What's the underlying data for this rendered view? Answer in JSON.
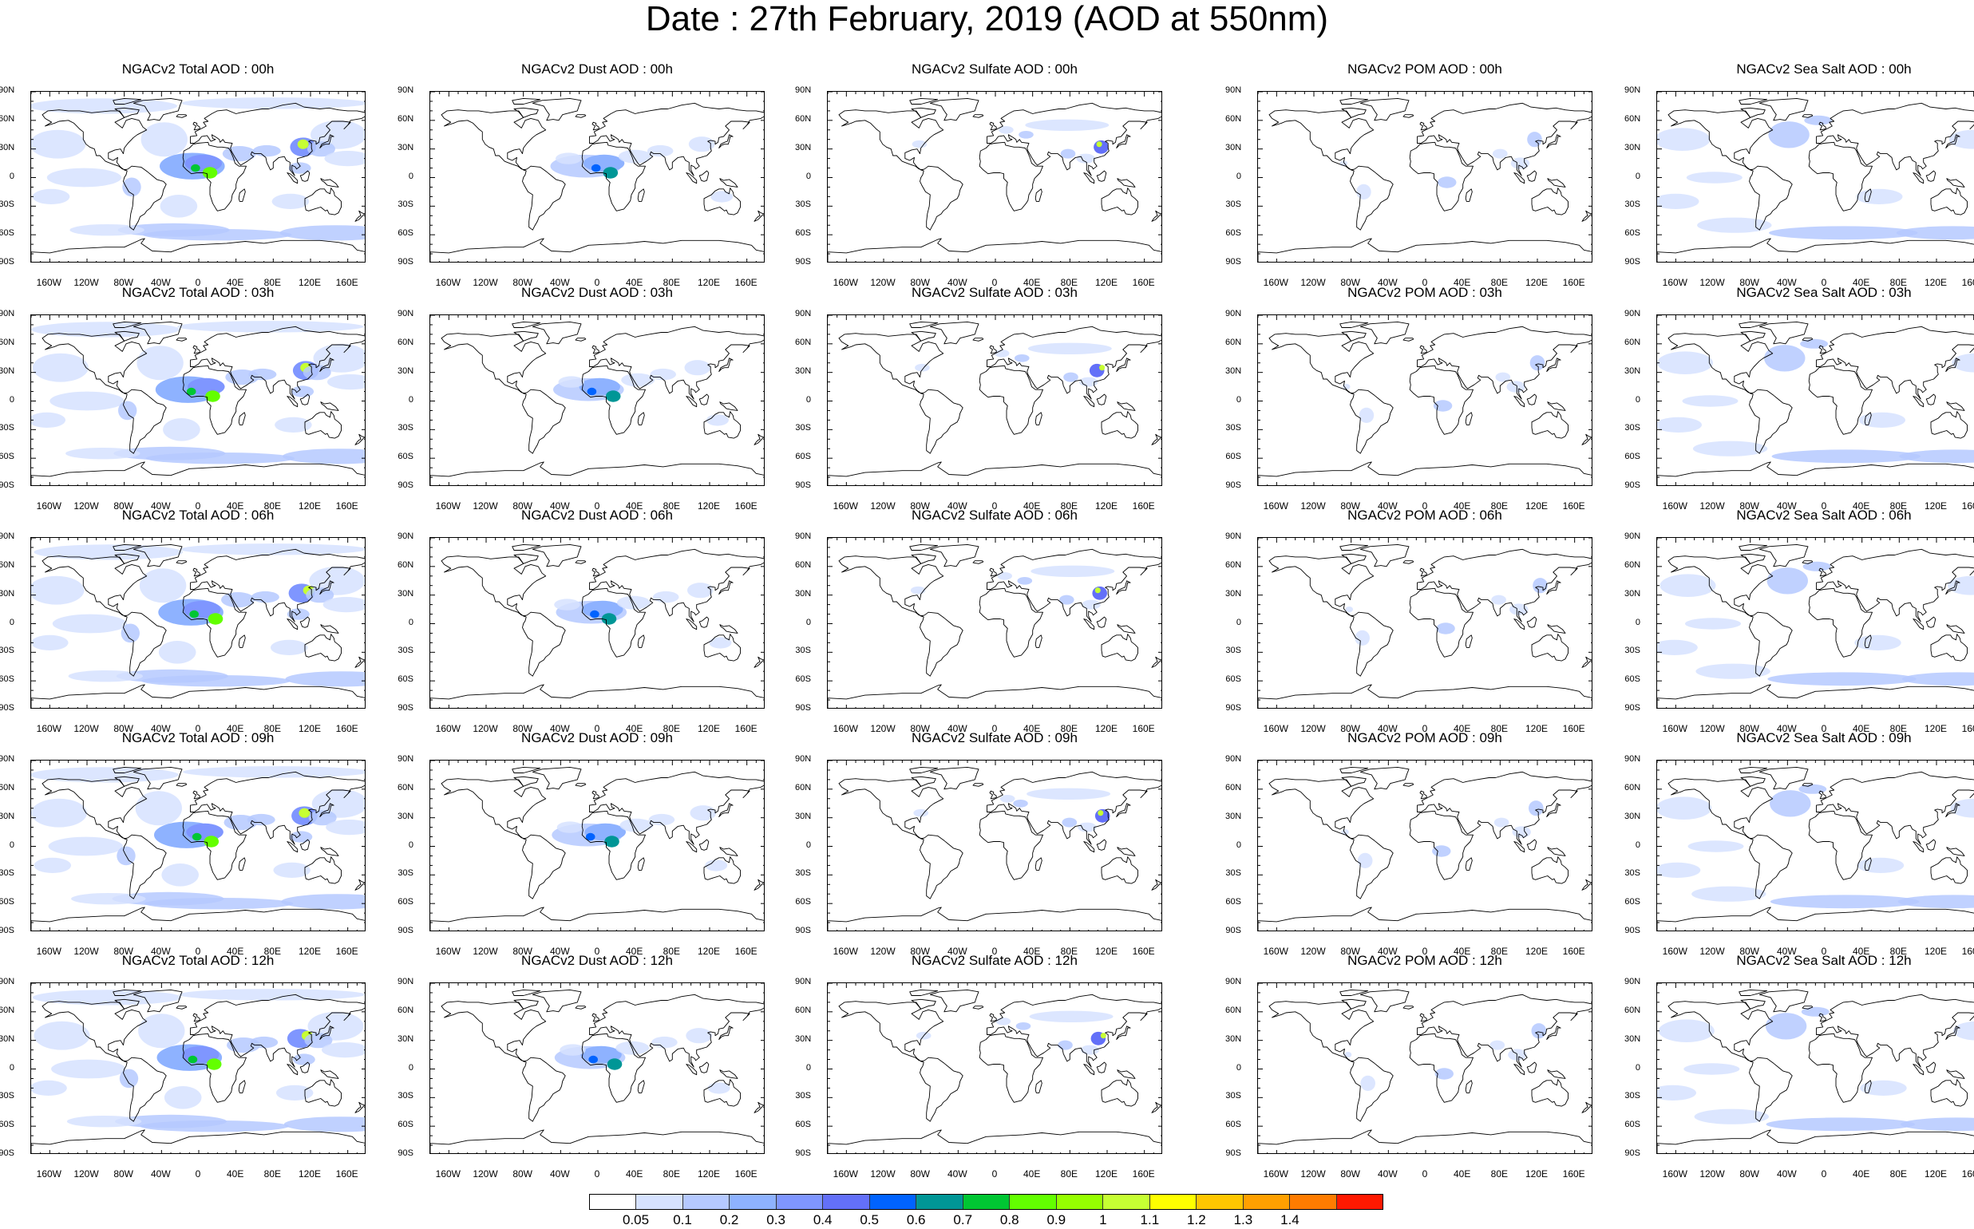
{
  "title": "Date : 27th February, 2019 (AOD at 550nm)",
  "lat_labels": [
    "90N",
    "60N",
    "30N",
    "0",
    "30S",
    "60S",
    "90S"
  ],
  "lon_labels": [
    "160W",
    "120W",
    "80W",
    "40W",
    "0",
    "40E",
    "80E",
    "120E",
    "160E"
  ],
  "columns": [
    {
      "key": "total",
      "titles": [
        "NGACv2 Total AOD : 00h",
        "NGACv2 Total AOD : 03h",
        "NGACv2 Total AOD : 06h",
        "NGACv2 Total AOD : 09h",
        "NGACv2 Total AOD :  12h"
      ]
    },
    {
      "key": "dust",
      "titles": [
        "NGACv2 Dust AOD : 00h",
        "NGACv2 Dust AOD : 03h",
        "NGACv2 Dust AOD : 06h",
        "NGACv2 Dust AOD : 09h",
        "NGACv2 Dust AOD : 12h"
      ]
    },
    {
      "key": "sulfate",
      "titles": [
        "NGACv2 Sulfate AOD : 00h",
        "NGACv2 Sulfate AOD : 03h",
        "NGACv2 Sulfate AOD : 06h",
        "NGACv2 Sulfate AOD : 09h",
        "NGACv2 Sulfate AOD : 12h"
      ]
    },
    {
      "key": "pom",
      "titles": [
        "NGACv2 POM AOD : 00h",
        "NGACv2 POM AOD : 03h",
        "NGACv2 POM AOD : 06h",
        "NGACv2 POM AOD : 09h",
        "NGACv2 POM  AOD : 12h"
      ]
    },
    {
      "key": "seasalt",
      "titles": [
        "NGACv2 Sea Salt AOD : 00h",
        "NGACv2 Sea Salt AOD : 03h",
        "NGACv2 Sea Salt AOD : 06h",
        "NGACv2 Sea Salt  AOD : 09h",
        "NGACv2 Sea Salt AOD : 12h"
      ]
    }
  ],
  "colorbar": {
    "labels": [
      "0.05",
      "0.1",
      "0.2",
      "0.3",
      "0.4",
      "0.5",
      "0.6",
      "0.7",
      "0.8",
      "0.9",
      "1",
      "1.1",
      "1.2",
      "1.3",
      "1.4"
    ],
    "colors": [
      "#ffffff",
      "#d6e2ff",
      "#b5c9ff",
      "#8eb2ff",
      "#7f96ff",
      "#6370f8",
      "#0063ff",
      "#009696",
      "#00c633",
      "#63ff00",
      "#96ff00",
      "#c6ff33",
      "#ffff00",
      "#ffc600",
      "#ffa000",
      "#ff7c00",
      "#ff1900"
    ]
  }
}
